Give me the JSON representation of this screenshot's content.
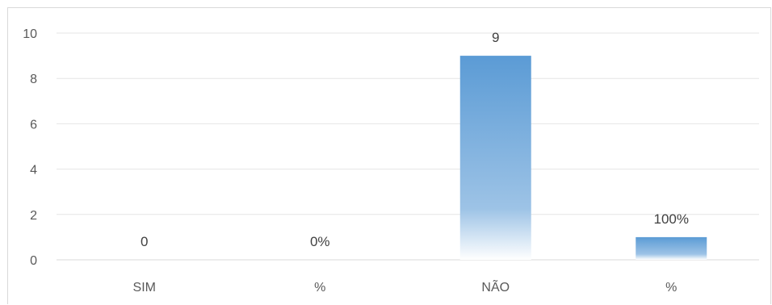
{
  "chart_data": {
    "type": "bar",
    "categories": [
      "SIM",
      "%",
      "NÃO",
      "%"
    ],
    "values": [
      0,
      0,
      9,
      1
    ],
    "data_labels": [
      "0",
      "0%",
      "9",
      "100%"
    ],
    "title": "",
    "xlabel": "",
    "ylabel": "",
    "ylim": [
      0,
      10
    ],
    "yticks": [
      0,
      2,
      4,
      6,
      8,
      10
    ],
    "ytick_labels": [
      "0",
      "2",
      "4",
      "6",
      "8",
      "10"
    ],
    "grid": true,
    "legend": "none",
    "bar_color": "#5b9bd5",
    "gridline_color": "#e6e6e6",
    "axis_color": "#d9d9d9"
  }
}
